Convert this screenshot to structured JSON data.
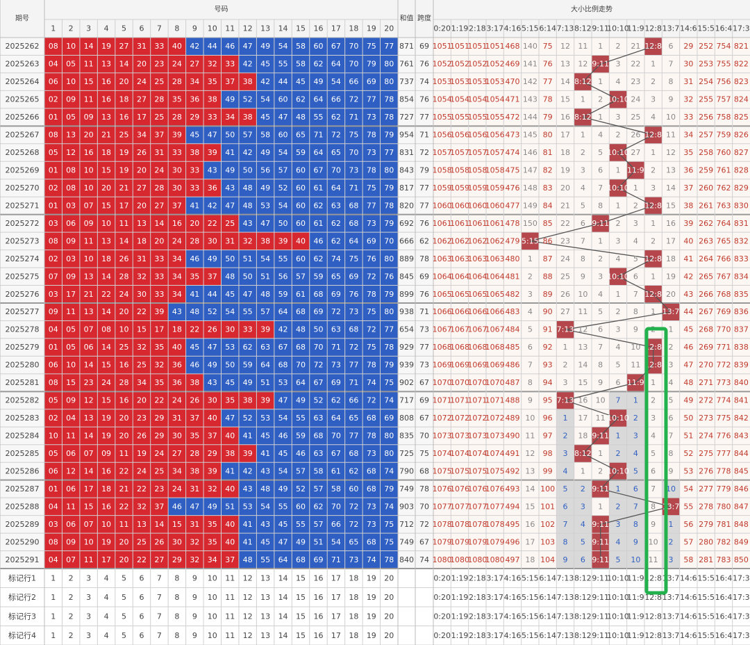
{
  "header": {
    "issue": "期号",
    "numbers": "号码",
    "sum": "和值",
    "span": "跨度",
    "trend": "大小比例走势",
    "columns": [
      1,
      2,
      3,
      4,
      5,
      6,
      7,
      8,
      9,
      10,
      11,
      12,
      13,
      14,
      15,
      16,
      17,
      18,
      19,
      20
    ],
    "ratios": [
      "0:20",
      "1:19",
      "2:18",
      "3:17",
      "4:16",
      "5:15",
      "6:14",
      "7:13",
      "8:12",
      "9:11",
      "10:10",
      "11:9",
      "12:8",
      "13:7",
      "14:6",
      "15:5",
      "16:4",
      "17:3"
    ]
  },
  "rows": [
    {
      "issue": "2025262",
      "numbers": [
        "08",
        "10",
        "14",
        "19",
        "27",
        "31",
        "33",
        "40",
        "42",
        "44",
        "46",
        "47",
        "49",
        "54",
        "58",
        "60",
        "67",
        "70",
        "75",
        "77"
      ],
      "sum": 871,
      "span": 69,
      "trend": [
        1051,
        1051,
        1051,
        1051,
        468,
        140,
        75,
        12,
        11,
        1,
        2,
        21,
        "12:8",
        6,
        29,
        252,
        754,
        821
      ]
    },
    {
      "issue": "2025263",
      "numbers": [
        "04",
        "05",
        "11",
        "13",
        "14",
        "20",
        "23",
        "24",
        "27",
        "32",
        "33",
        "42",
        "45",
        "55",
        "58",
        "62",
        "64",
        "70",
        "79",
        "80"
      ],
      "sum": 761,
      "span": 76,
      "trend": [
        1052,
        1052,
        1052,
        1052,
        469,
        141,
        76,
        13,
        12,
        "9:11",
        3,
        22,
        1,
        7,
        30,
        253,
        755,
        822
      ]
    },
    {
      "issue": "2025264",
      "numbers": [
        "06",
        "10",
        "15",
        "16",
        "20",
        "24",
        "25",
        "28",
        "34",
        "35",
        "37",
        "38",
        "42",
        "44",
        "45",
        "49",
        "54",
        "66",
        "69",
        "80"
      ],
      "sum": 737,
      "span": 74,
      "trend": [
        1053,
        1053,
        1053,
        1053,
        470,
        142,
        77,
        14,
        "8:12",
        1,
        4,
        23,
        2,
        8,
        31,
        254,
        756,
        823
      ]
    },
    {
      "issue": "2025265",
      "numbers": [
        "02",
        "09",
        "11",
        "16",
        "18",
        "27",
        "28",
        "35",
        "36",
        "38",
        "49",
        "52",
        "54",
        "60",
        "62",
        "64",
        "66",
        "72",
        "77",
        "78"
      ],
      "sum": 854,
      "span": 76,
      "trend": [
        1054,
        1054,
        1054,
        1054,
        471,
        143,
        78,
        15,
        1,
        2,
        "10:10",
        24,
        3,
        9,
        32,
        255,
        757,
        824
      ]
    },
    {
      "issue": "2025266",
      "numbers": [
        "01",
        "05",
        "09",
        "13",
        "16",
        "17",
        "25",
        "28",
        "29",
        "33",
        "34",
        "38",
        "45",
        "47",
        "48",
        "55",
        "62",
        "71",
        "73",
        "78"
      ],
      "sum": 727,
      "span": 77,
      "trend": [
        1055,
        1055,
        1055,
        1055,
        472,
        144,
        79,
        16,
        "8:12",
        1,
        3,
        25,
        4,
        10,
        33,
        256,
        758,
        825
      ]
    },
    {
      "issue": "2025267",
      "numbers": [
        "08",
        "13",
        "20",
        "21",
        "25",
        "34",
        "37",
        "39",
        "45",
        "47",
        "50",
        "57",
        "58",
        "60",
        "65",
        "71",
        "72",
        "75",
        "78",
        "79"
      ],
      "sum": 954,
      "span": 71,
      "trend": [
        1056,
        1056,
        1056,
        1056,
        473,
        145,
        80,
        17,
        1,
        4,
        2,
        26,
        "12:8",
        11,
        34,
        257,
        759,
        826
      ]
    },
    {
      "issue": "2025268",
      "numbers": [
        "05",
        "12",
        "16",
        "18",
        "19",
        "26",
        "31",
        "33",
        "38",
        "39",
        "41",
        "42",
        "49",
        "54",
        "59",
        "64",
        "65",
        "70",
        "73",
        "77"
      ],
      "sum": 831,
      "span": 72,
      "trend": [
        1057,
        1057,
        1057,
        1057,
        474,
        146,
        81,
        18,
        2,
        5,
        "10:10",
        27,
        1,
        12,
        35,
        258,
        760,
        827
      ]
    },
    {
      "issue": "2025269",
      "numbers": [
        "01",
        "08",
        "10",
        "15",
        "19",
        "20",
        "24",
        "30",
        "33",
        "43",
        "49",
        "50",
        "56",
        "57",
        "60",
        "67",
        "70",
        "73",
        "78",
        "80"
      ],
      "sum": 843,
      "span": 79,
      "trend": [
        1058,
        1058,
        1058,
        1058,
        475,
        147,
        82,
        19,
        3,
        6,
        1,
        "11:9",
        2,
        13,
        36,
        259,
        761,
        828
      ]
    },
    {
      "issue": "2025270",
      "numbers": [
        "02",
        "08",
        "10",
        "20",
        "21",
        "27",
        "28",
        "30",
        "33",
        "36",
        "43",
        "48",
        "49",
        "52",
        "60",
        "61",
        "64",
        "71",
        "75",
        "79"
      ],
      "sum": 817,
      "span": 77,
      "trend": [
        1059,
        1059,
        1059,
        1059,
        476,
        148,
        83,
        20,
        4,
        7,
        "10:10",
        1,
        3,
        14,
        37,
        260,
        762,
        829
      ]
    },
    {
      "issue": "2025271",
      "numbers": [
        "01",
        "03",
        "07",
        "15",
        "17",
        "20",
        "27",
        "37",
        "41",
        "42",
        "47",
        "48",
        "53",
        "54",
        "60",
        "62",
        "63",
        "68",
        "77",
        "78"
      ],
      "sum": 820,
      "span": 77,
      "trend": [
        1060,
        1060,
        1060,
        1060,
        477,
        149,
        84,
        21,
        5,
        8,
        1,
        2,
        "12:8",
        15,
        38,
        261,
        763,
        830
      ]
    },
    {
      "issue": "2025272",
      "numbers": [
        "03",
        "06",
        "09",
        "10",
        "11",
        "13",
        "14",
        "16",
        "20",
        "22",
        "25",
        "43",
        "47",
        "50",
        "60",
        "61",
        "62",
        "68",
        "73",
        "79"
      ],
      "sum": 692,
      "span": 76,
      "trend": [
        1061,
        1061,
        1061,
        1061,
        478,
        150,
        85,
        22,
        6,
        "9:11",
        2,
        3,
        1,
        16,
        39,
        262,
        764,
        831
      ]
    },
    {
      "issue": "2025273",
      "numbers": [
        "08",
        "09",
        "11",
        "13",
        "14",
        "18",
        "20",
        "24",
        "28",
        "30",
        "31",
        "32",
        "38",
        "39",
        "40",
        "46",
        "62",
        "64",
        "69",
        "70"
      ],
      "sum": 666,
      "span": 62,
      "trend": [
        1062,
        1062,
        1062,
        1062,
        479,
        "5:15",
        86,
        23,
        7,
        1,
        3,
        4,
        2,
        17,
        40,
        263,
        765,
        832
      ]
    },
    {
      "issue": "2025274",
      "numbers": [
        "02",
        "03",
        "10",
        "18",
        "26",
        "31",
        "33",
        "34",
        "46",
        "49",
        "50",
        "51",
        "54",
        "55",
        "60",
        "62",
        "74",
        "75",
        "76",
        "80"
      ],
      "sum": 889,
      "span": 78,
      "trend": [
        1063,
        1063,
        1063,
        1063,
        480,
        1,
        87,
        24,
        8,
        2,
        4,
        5,
        "12:8",
        18,
        41,
        264,
        766,
        833
      ]
    },
    {
      "issue": "2025275",
      "numbers": [
        "07",
        "09",
        "13",
        "14",
        "28",
        "32",
        "33",
        "34",
        "35",
        "37",
        "48",
        "50",
        "51",
        "56",
        "57",
        "59",
        "65",
        "69",
        "72",
        "76"
      ],
      "sum": 845,
      "span": 69,
      "trend": [
        1064,
        1064,
        1064,
        1064,
        481,
        2,
        88,
        25,
        9,
        3,
        "10:10",
        6,
        1,
        19,
        42,
        265,
        767,
        834
      ]
    },
    {
      "issue": "2025276",
      "numbers": [
        "03",
        "17",
        "21",
        "22",
        "24",
        "30",
        "33",
        "34",
        "41",
        "44",
        "45",
        "47",
        "48",
        "59",
        "61",
        "68",
        "69",
        "76",
        "78",
        "79"
      ],
      "sum": 899,
      "span": 76,
      "trend": [
        1065,
        1065,
        1065,
        1065,
        482,
        3,
        89,
        26,
        10,
        4,
        1,
        7,
        "12:8",
        20,
        43,
        266,
        768,
        835
      ]
    },
    {
      "issue": "2025277",
      "numbers": [
        "09",
        "11",
        "13",
        "14",
        "20",
        "22",
        "39",
        "43",
        "48",
        "52",
        "54",
        "55",
        "57",
        "64",
        "68",
        "69",
        "72",
        "73",
        "75",
        "80"
      ],
      "sum": 938,
      "span": 71,
      "trend": [
        1066,
        1066,
        1066,
        1066,
        483,
        4,
        90,
        27,
        11,
        5,
        2,
        8,
        1,
        "13:7",
        44,
        267,
        769,
        836
      ]
    },
    {
      "issue": "2025278",
      "numbers": [
        "04",
        "05",
        "07",
        "08",
        "10",
        "15",
        "17",
        "18",
        "22",
        "26",
        "30",
        "33",
        "39",
        "42",
        "48",
        "50",
        "63",
        "68",
        "72",
        "77"
      ],
      "sum": 654,
      "span": 73,
      "trend": [
        1067,
        1067,
        1067,
        1067,
        484,
        5,
        91,
        "7:13",
        12,
        6,
        3,
        9,
        2,
        1,
        45,
        268,
        770,
        837
      ]
    },
    {
      "issue": "2025279",
      "numbers": [
        "01",
        "05",
        "06",
        "14",
        "25",
        "32",
        "35",
        "40",
        "45",
        "47",
        "53",
        "62",
        "63",
        "67",
        "68",
        "70",
        "71",
        "72",
        "75",
        "78"
      ],
      "sum": 929,
      "span": 77,
      "trend": [
        1068,
        1068,
        1068,
        1068,
        485,
        6,
        92,
        1,
        13,
        7,
        4,
        10,
        "12:8",
        2,
        46,
        269,
        771,
        838
      ]
    },
    {
      "issue": "2025280",
      "numbers": [
        "06",
        "10",
        "14",
        "15",
        "16",
        "25",
        "32",
        "36",
        "46",
        "49",
        "50",
        "59",
        "64",
        "68",
        "70",
        "72",
        "73",
        "77",
        "78",
        "79"
      ],
      "sum": 939,
      "span": 73,
      "trend": [
        1069,
        1069,
        1069,
        1069,
        486,
        7,
        93,
        2,
        14,
        8,
        5,
        11,
        "12:8",
        3,
        47,
        270,
        772,
        839
      ]
    },
    {
      "issue": "2025281",
      "numbers": [
        "08",
        "15",
        "23",
        "24",
        "28",
        "34",
        "35",
        "36",
        "38",
        "43",
        "45",
        "49",
        "51",
        "53",
        "64",
        "67",
        "69",
        "71",
        "74",
        "75"
      ],
      "sum": 902,
      "span": 67,
      "trend": [
        1070,
        1070,
        1070,
        1070,
        487,
        8,
        94,
        3,
        15,
        9,
        6,
        "11:9",
        1,
        4,
        48,
        271,
        773,
        840
      ]
    },
    {
      "issue": "2025282",
      "numbers": [
        "05",
        "09",
        "12",
        "15",
        "16",
        "20",
        "22",
        "24",
        "26",
        "30",
        "35",
        "38",
        "39",
        "47",
        "49",
        "52",
        "62",
        "66",
        "72",
        "74"
      ],
      "sum": 717,
      "span": 69,
      "trend": [
        1071,
        1071,
        1071,
        1071,
        488,
        9,
        95,
        "7:13",
        16,
        10,
        7,
        1,
        2,
        5,
        49,
        272,
        774,
        841
      ]
    },
    {
      "issue": "2025283",
      "numbers": [
        "02",
        "04",
        "13",
        "19",
        "20",
        "23",
        "29",
        "31",
        "37",
        "40",
        "47",
        "52",
        "53",
        "54",
        "55",
        "63",
        "64",
        "65",
        "68",
        "69"
      ],
      "sum": 808,
      "span": 67,
      "trend": [
        1072,
        1072,
        1072,
        1072,
        489,
        10,
        96,
        1,
        17,
        11,
        "10:10",
        2,
        3,
        6,
        50,
        273,
        775,
        842
      ]
    },
    {
      "issue": "2025284",
      "numbers": [
        "10",
        "11",
        "14",
        "19",
        "20",
        "26",
        "29",
        "30",
        "35",
        "37",
        "40",
        "41",
        "45",
        "46",
        "59",
        "68",
        "70",
        "77",
        "78",
        "80"
      ],
      "sum": 835,
      "span": 70,
      "trend": [
        1073,
        1073,
        1073,
        1073,
        490,
        11,
        97,
        2,
        18,
        "9:11",
        1,
        3,
        4,
        7,
        51,
        274,
        776,
        843
      ]
    },
    {
      "issue": "2025285",
      "numbers": [
        "05",
        "06",
        "07",
        "09",
        "11",
        "19",
        "24",
        "27",
        "28",
        "29",
        "38",
        "39",
        "41",
        "45",
        "46",
        "63",
        "67",
        "68",
        "73",
        "80"
      ],
      "sum": 725,
      "span": 75,
      "trend": [
        1074,
        1074,
        1074,
        1074,
        491,
        12,
        98,
        3,
        "8:12",
        1,
        2,
        4,
        5,
        8,
        52,
        275,
        777,
        844
      ]
    },
    {
      "issue": "2025286",
      "numbers": [
        "06",
        "12",
        "14",
        "16",
        "22",
        "24",
        "25",
        "34",
        "38",
        "39",
        "41",
        "42",
        "43",
        "54",
        "57",
        "58",
        "61",
        "62",
        "68",
        "74"
      ],
      "sum": 790,
      "span": 68,
      "trend": [
        1075,
        1075,
        1075,
        1075,
        492,
        13,
        99,
        4,
        1,
        2,
        "10:10",
        5,
        6,
        9,
        53,
        276,
        778,
        845
      ]
    },
    {
      "issue": "2025287",
      "numbers": [
        "01",
        "06",
        "17",
        "18",
        "21",
        "22",
        "23",
        "24",
        "31",
        "32",
        "40",
        "43",
        "48",
        "49",
        "52",
        "57",
        "58",
        "60",
        "68",
        "79"
      ],
      "sum": 749,
      "span": 78,
      "trend": [
        1076,
        1076,
        1076,
        1076,
        493,
        14,
        100,
        5,
        2,
        "9:11",
        1,
        6,
        7,
        10,
        54,
        277,
        779,
        846
      ]
    },
    {
      "issue": "2025288",
      "numbers": [
        "04",
        "11",
        "15",
        "16",
        "22",
        "32",
        "37",
        "46",
        "47",
        "49",
        "51",
        "53",
        "54",
        "55",
        "60",
        "62",
        "70",
        "72",
        "73",
        "74"
      ],
      "sum": 903,
      "span": 70,
      "trend": [
        1077,
        1077,
        1077,
        1077,
        494,
        15,
        101,
        6,
        3,
        1,
        2,
        7,
        8,
        "13:7",
        55,
        278,
        780,
        847
      ]
    },
    {
      "issue": "2025289",
      "numbers": [
        "03",
        "06",
        "07",
        "10",
        "11",
        "13",
        "14",
        "15",
        "31",
        "35",
        "40",
        "41",
        "43",
        "45",
        "55",
        "57",
        "66",
        "72",
        "73",
        "75"
      ],
      "sum": 712,
      "span": 72,
      "trend": [
        1078,
        1078,
        1078,
        1078,
        495,
        16,
        102,
        7,
        4,
        "9:11",
        3,
        8,
        9,
        1,
        56,
        279,
        781,
        848
      ]
    },
    {
      "issue": "2025290",
      "numbers": [
        "08",
        "09",
        "10",
        "19",
        "20",
        "25",
        "26",
        "30",
        "32",
        "35",
        "40",
        "41",
        "45",
        "47",
        "49",
        "51",
        "54",
        "65",
        "68",
        "75"
      ],
      "sum": 749,
      "span": 67,
      "trend": [
        1079,
        1079,
        1079,
        1079,
        496,
        17,
        103,
        8,
        5,
        "9:11",
        4,
        9,
        10,
        2,
        57,
        280,
        782,
        849
      ]
    },
    {
      "issue": "2025291",
      "numbers": [
        "04",
        "07",
        "11",
        "17",
        "20",
        "22",
        "27",
        "29",
        "32",
        "34",
        "37",
        "48",
        "55",
        "64",
        "68",
        "69",
        "71",
        "73",
        "74",
        "78"
      ],
      "sum": 840,
      "span": 74,
      "trend": [
        1080,
        1080,
        1080,
        1080,
        497,
        18,
        104,
        9,
        6,
        "9:11",
        5,
        10,
        11,
        3,
        58,
        281,
        783,
        850
      ]
    }
  ],
  "marker_rows": [
    "标记行1",
    "标记行2",
    "标记行3",
    "标记行4"
  ]
}
